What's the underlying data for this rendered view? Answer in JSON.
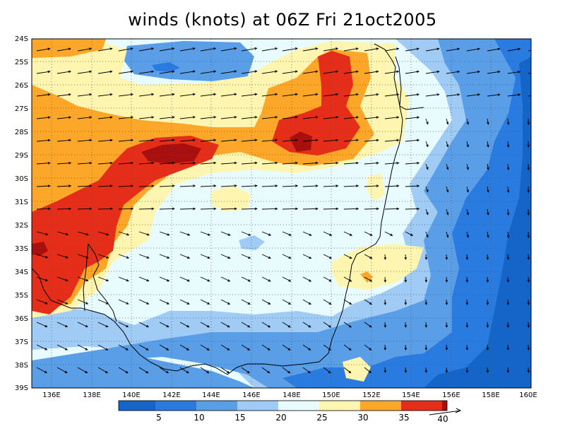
{
  "title": "winds (knots) at 06Z Fri 21oct2005",
  "lat_labels": [
    "24S",
    "25S",
    "26S",
    "27S",
    "28S",
    "29S",
    "30S",
    "31S",
    "32S",
    "33S",
    "34S",
    "35S",
    "36S",
    "37S",
    "38S",
    "39S"
  ],
  "lon_labels": [
    "136E",
    "138E",
    "140E",
    "142E",
    "144E",
    "146E",
    "148E",
    "150E",
    "152E",
    "154E",
    "156E",
    "158E",
    "160E"
  ],
  "colorbar": {
    "labels": [
      "5",
      "10",
      "15",
      "20",
      "25",
      "30",
      "35",
      "40"
    ],
    "colors": [
      "#1565c8",
      "#2a7be0",
      "#5a9ee8",
      "#9fcbf5",
      "#e8fcff",
      "#fef5b0",
      "#fca72a",
      "#e52e1a",
      "#a80f0f"
    ]
  },
  "fill_colors": {
    "lt5": "#1565c8",
    "c5_10": "#2a7be0",
    "c10_15": "#5a9ee8",
    "c15_20": "#9fcbf5",
    "c20_25": "#e8fcff",
    "c25_30": "#fef5b0",
    "c30_35": "#fca72a",
    "c35_40": "#e52e1a",
    "gt40": "#a80f0f"
  },
  "grid": "dotted",
  "arrow_color": "#000000",
  "coastline_color": "#000000"
}
